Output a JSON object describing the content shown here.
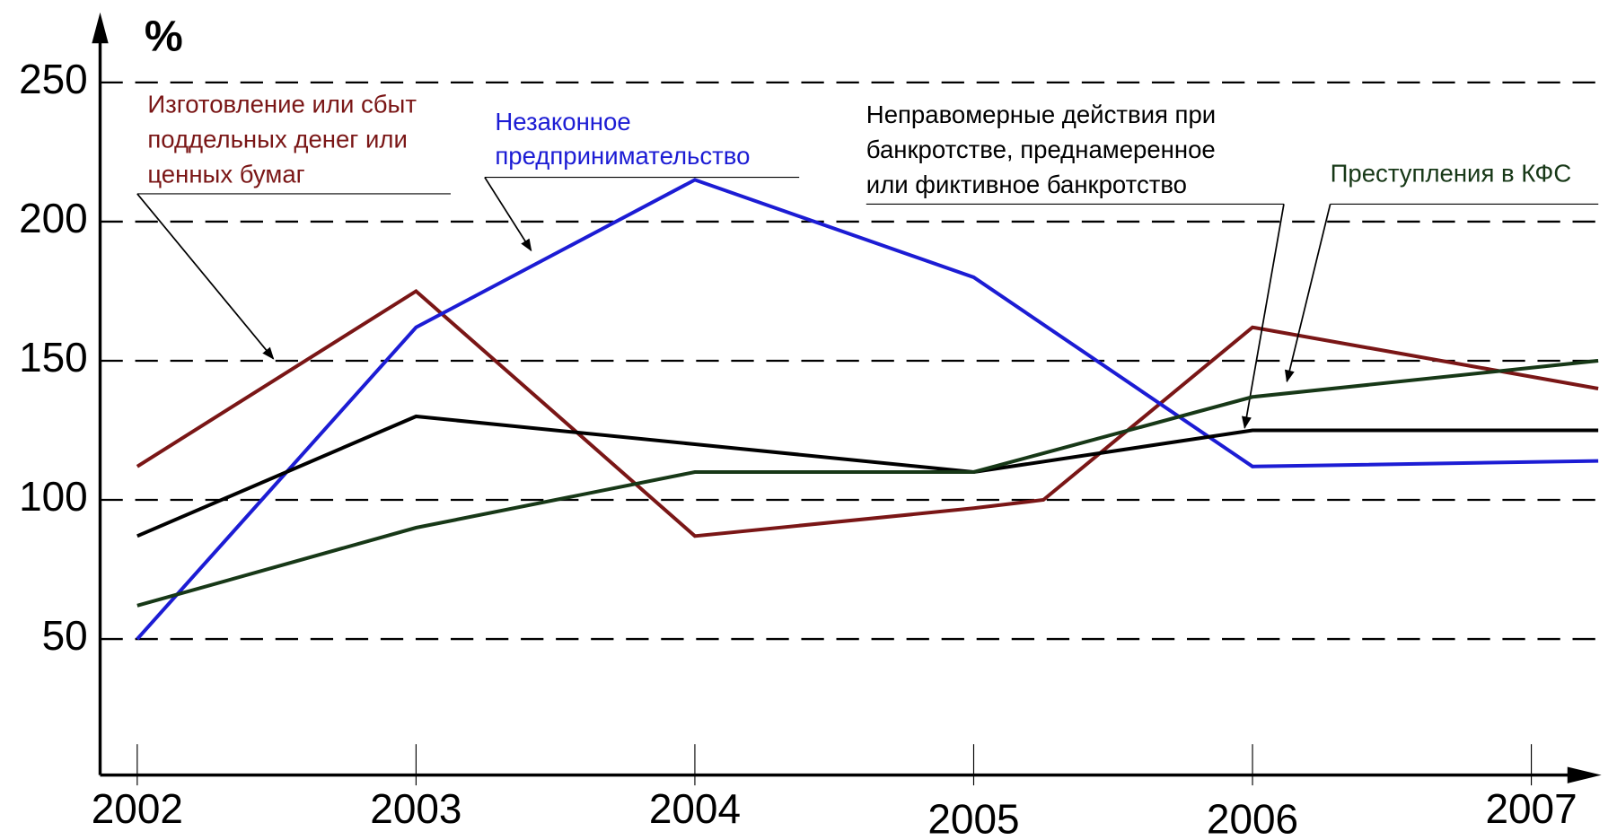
{
  "chart_data": {
    "type": "line",
    "y_label": "%",
    "xlim": [
      2001.87,
      2007.3
    ],
    "xticks": [
      2002,
      2003,
      2004,
      2005,
      2006,
      2007
    ],
    "ylim": [
      0,
      250
    ],
    "yticks": [
      50,
      100,
      150,
      200,
      250
    ],
    "grid": true,
    "series": [
      {
        "name": [
          "Изготовление или сбыт",
          "поддельных денег или",
          "ценных бумаг"
        ],
        "color": "#7a1616",
        "x": [
          2002,
          2003,
          2004,
          2005,
          2005.25,
          2006,
          2007.24
        ],
        "values": [
          112,
          175,
          87,
          97,
          100,
          162,
          140
        ]
      },
      {
        "name": [
          "Незаконное",
          "предпринимательство"
        ],
        "color": "#1c1cd4",
        "x": [
          2002,
          2003,
          2004,
          2005,
          2006,
          2007.24
        ],
        "values": [
          50,
          162,
          215,
          180,
          112,
          114
        ]
      },
      {
        "name": [
          "Неправомерные действия при",
          "банкротстве, преднамеренное",
          "или фиктивное банкротство"
        ],
        "color": "#000000",
        "x": [
          2002,
          2003,
          2004,
          2005,
          2006,
          2007.24
        ],
        "values": [
          87,
          130,
          120,
          110,
          125,
          125
        ]
      },
      {
        "name": [
          "Преступления в КФС"
        ],
        "color": "#173817",
        "x": [
          2002,
          2003,
          2004,
          2005,
          2006,
          2007.24
        ],
        "values": [
          62,
          90,
          110,
          110,
          137,
          150
        ]
      }
    ]
  }
}
